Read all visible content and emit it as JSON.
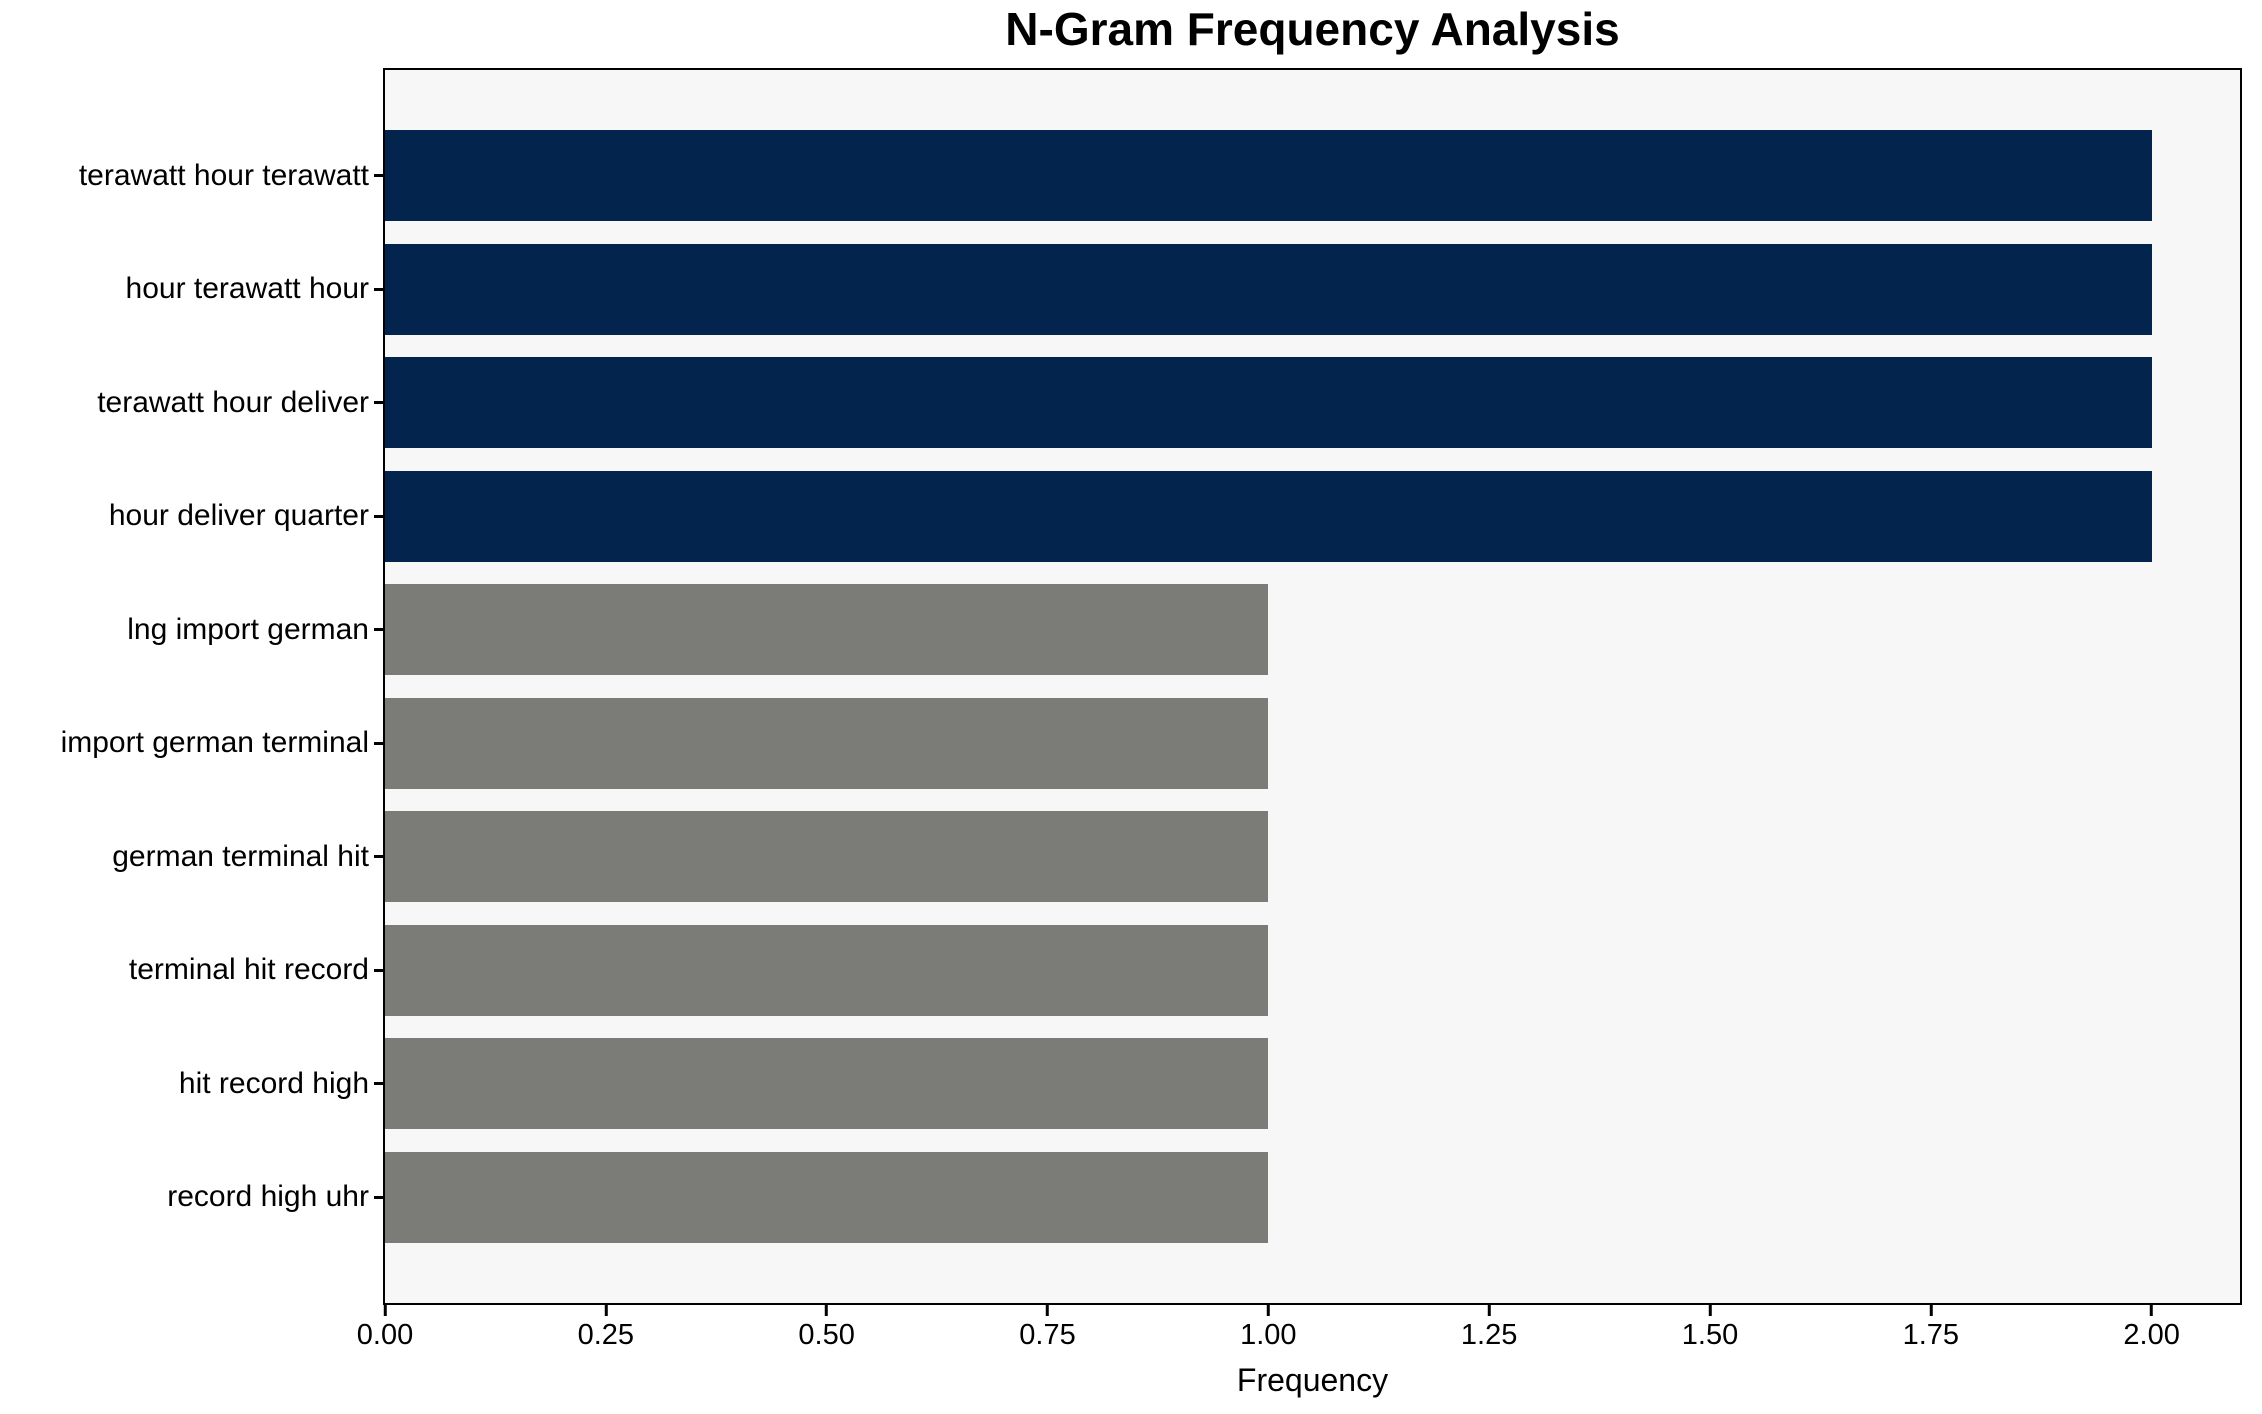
{
  "chart_data": {
    "type": "bar",
    "orientation": "horizontal",
    "title": "N-Gram Frequency Analysis",
    "xlabel": "Frequency",
    "ylabel": "",
    "categories": [
      "terawatt hour terawatt",
      "hour terawatt hour",
      "terawatt hour deliver",
      "hour deliver quarter",
      "lng import german",
      "import german terminal",
      "german terminal hit",
      "terminal hit record",
      "hit record high",
      "record high uhr"
    ],
    "values": [
      2,
      2,
      2,
      2,
      1,
      1,
      1,
      1,
      1,
      1
    ],
    "bar_colors": [
      "#03254d",
      "#03254d",
      "#03254d",
      "#03254d",
      "#7b7b78",
      "#7b7b78",
      "#7b7b78",
      "#7b7b78",
      "#7b7b78",
      "#7b7b78"
    ],
    "xlim": [
      0,
      2.1
    ],
    "xticks": [
      0.0,
      0.25,
      0.5,
      0.75,
      1.0,
      1.25,
      1.5,
      1.75,
      2.0
    ],
    "xtick_labels": [
      "0.00",
      "0.25",
      "0.50",
      "0.75",
      "1.00",
      "1.25",
      "1.50",
      "1.75",
      "2.00"
    ],
    "grid": false,
    "legend_position": "none",
    "plot_background": "#f7f7f7",
    "figure_background": "#ffffff",
    "accent_colors": {
      "navy": "#03254d",
      "gray": "#7b7b78"
    }
  }
}
